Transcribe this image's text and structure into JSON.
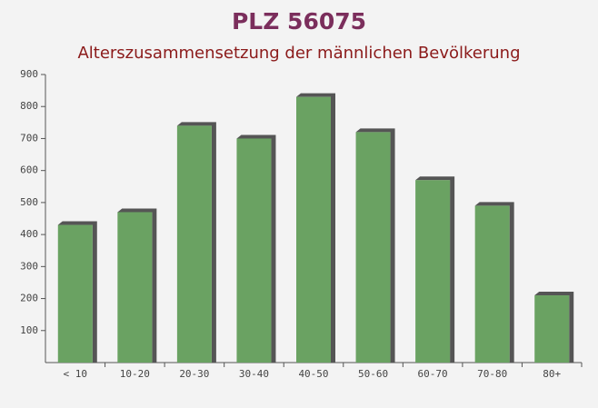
{
  "chart_data": {
    "type": "bar",
    "title": "PLZ 56075",
    "subtitle": "Alterszusammensetzung der männlichen Bevölkerung",
    "categories": [
      "< 10",
      "10-20",
      "20-30",
      "30-40",
      "40-50",
      "50-60",
      "60-70",
      "70-80",
      "80+"
    ],
    "values": [
      430,
      470,
      740,
      700,
      830,
      720,
      570,
      490,
      210
    ],
    "color": "#6aa262",
    "ylim": [
      0,
      900
    ],
    "yticks": [
      100,
      200,
      300,
      400,
      500,
      600,
      700,
      800,
      900
    ],
    "grid": false
  }
}
